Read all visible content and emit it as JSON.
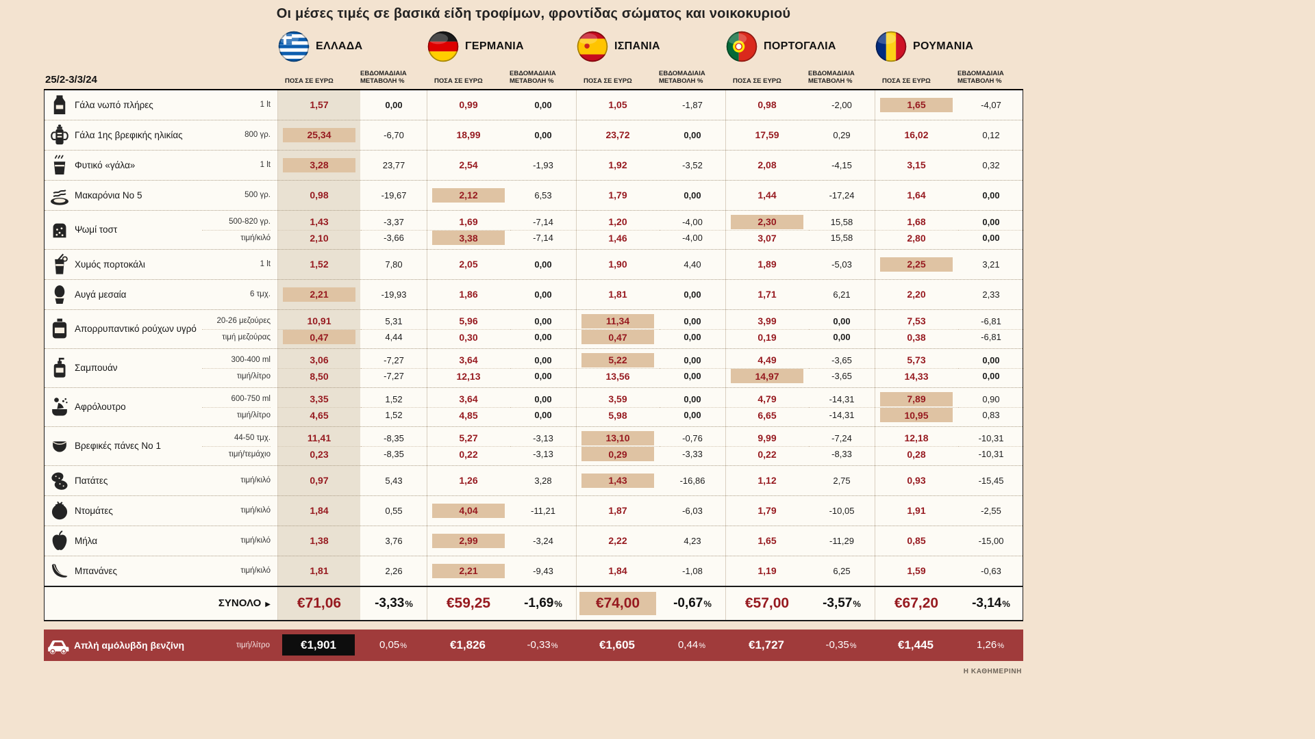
{
  "chart_data": {
    "type": "table",
    "title": "Οι μέσες τιμές σε βασικά είδη τροφίμων, φροντίδας σώματος και νοικοκυριού",
    "period": "25/2-3/3/24",
    "price_header": "ΠΟΣΑ ΣΕ ΕΥΡΩ",
    "change_header": "ΕΒΔΟΜΑΔΙΑΙΑ ΜΕΤΑΒΟΛΗ %",
    "brand": "Η ΚΑΘΗΜΕΡΙΝΗ",
    "colors": {
      "background": "#f3e3d0",
      "table_bg": "#fdfbf5",
      "highlight": "#dfc3a3",
      "greece_column": "#e9e1d2",
      "price_text": "#96191f",
      "fuel_band": "#a03b3b"
    },
    "countries": [
      {
        "name": "ΕΛΛΑΔΑ",
        "flag": "greece"
      },
      {
        "name": "ΓΕΡΜΑΝΙΑ",
        "flag": "germany"
      },
      {
        "name": "ΙΣΠΑΝΙΑ",
        "flag": "spain"
      },
      {
        "name": "ΠΟΡΤΟΓΑΛΙΑ",
        "flag": "portugal"
      },
      {
        "name": "ΡΟΥΜΑΝΙΑ",
        "flag": "romania"
      }
    ],
    "rows": [
      {
        "product": "Γάλα νωπό πλήρες",
        "icon": "milk-carton",
        "lines": [
          {
            "unit": "1 lt",
            "values": [
              {
                "price": "1,57",
                "change": "0,00",
                "hl": false
              },
              {
                "price": "0,99",
                "change": "0,00",
                "hl": false
              },
              {
                "price": "1,05",
                "change": "-1,87",
                "hl": false
              },
              {
                "price": "0,98",
                "change": "-2,00",
                "hl": false
              },
              {
                "price": "1,65",
                "change": "-4,07",
                "hl": true
              }
            ]
          }
        ]
      },
      {
        "product": "Γάλα 1ης βρεφικής ηλικίας",
        "icon": "baby-bottle",
        "lines": [
          {
            "unit": "800 γρ.",
            "values": [
              {
                "price": "25,34",
                "change": "-6,70",
                "hl": true
              },
              {
                "price": "18,99",
                "change": "0,00",
                "hl": false
              },
              {
                "price": "23,72",
                "change": "0,00",
                "hl": false
              },
              {
                "price": "17,59",
                "change": "0,29",
                "hl": false
              },
              {
                "price": "16,02",
                "change": "0,12",
                "hl": false
              }
            ]
          }
        ]
      },
      {
        "product": "Φυτικό «γάλα»",
        "icon": "plant-milk",
        "lines": [
          {
            "unit": "1 lt",
            "values": [
              {
                "price": "3,28",
                "change": "23,77",
                "hl": true
              },
              {
                "price": "2,54",
                "change": "-1,93",
                "hl": false
              },
              {
                "price": "1,92",
                "change": "-3,52",
                "hl": false
              },
              {
                "price": "2,08",
                "change": "-4,15",
                "hl": false
              },
              {
                "price": "3,15",
                "change": "0,32",
                "hl": false
              }
            ]
          }
        ]
      },
      {
        "product": "Μακαρόνια Νο 5",
        "icon": "pasta",
        "lines": [
          {
            "unit": "500 γρ.",
            "values": [
              {
                "price": "0,98",
                "change": "-19,67",
                "hl": false
              },
              {
                "price": "2,12",
                "change": "6,53",
                "hl": true
              },
              {
                "price": "1,79",
                "change": "0,00",
                "hl": false
              },
              {
                "price": "1,44",
                "change": "-17,24",
                "hl": false
              },
              {
                "price": "1,64",
                "change": "0,00",
                "hl": false
              }
            ]
          }
        ]
      },
      {
        "product": "Ψωμί τοστ",
        "icon": "toast",
        "lines": [
          {
            "unit": "500-820 γρ.",
            "values": [
              {
                "price": "1,43",
                "change": "-3,37",
                "hl": false
              },
              {
                "price": "1,69",
                "change": "-7,14",
                "hl": false
              },
              {
                "price": "1,20",
                "change": "-4,00",
                "hl": false
              },
              {
                "price": "2,30",
                "change": "15,58",
                "hl": true
              },
              {
                "price": "1,68",
                "change": "0,00",
                "hl": false
              }
            ]
          },
          {
            "unit": "τιμή/κιλό",
            "values": [
              {
                "price": "2,10",
                "change": "-3,66",
                "hl": false
              },
              {
                "price": "3,38",
                "change": "-7,14",
                "hl": true
              },
              {
                "price": "1,46",
                "change": "-4,00",
                "hl": false
              },
              {
                "price": "3,07",
                "change": "15,58",
                "hl": false
              },
              {
                "price": "2,80",
                "change": "0,00",
                "hl": false
              }
            ]
          }
        ]
      },
      {
        "product": "Χυμός πορτοκάλι",
        "icon": "juice",
        "lines": [
          {
            "unit": "1 lt",
            "values": [
              {
                "price": "1,52",
                "change": "7,80",
                "hl": false
              },
              {
                "price": "2,05",
                "change": "0,00",
                "hl": false
              },
              {
                "price": "1,90",
                "change": "4,40",
                "hl": false
              },
              {
                "price": "1,89",
                "change": "-5,03",
                "hl": false
              },
              {
                "price": "2,25",
                "change": "3,21",
                "hl": true
              }
            ]
          }
        ]
      },
      {
        "product": "Αυγά μεσαία",
        "icon": "egg",
        "lines": [
          {
            "unit": "6 τμχ.",
            "values": [
              {
                "price": "2,21",
                "change": "-19,93",
                "hl": true
              },
              {
                "price": "1,86",
                "change": "0,00",
                "hl": false
              },
              {
                "price": "1,81",
                "change": "0,00",
                "hl": false
              },
              {
                "price": "1,71",
                "change": "6,21",
                "hl": false
              },
              {
                "price": "2,20",
                "change": "2,33",
                "hl": false
              }
            ]
          }
        ]
      },
      {
        "product": "Απορρυπαντικό ρούχων υγρό",
        "icon": "detergent",
        "lines": [
          {
            "unit": "20-26 μεζούρες",
            "values": [
              {
                "price": "10,91",
                "change": "5,31",
                "hl": false
              },
              {
                "price": "5,96",
                "change": "0,00",
                "hl": false
              },
              {
                "price": "11,34",
                "change": "0,00",
                "hl": true
              },
              {
                "price": "3,99",
                "change": "0,00",
                "hl": false
              },
              {
                "price": "7,53",
                "change": "-6,81",
                "hl": false
              }
            ]
          },
          {
            "unit": "τιμή μεζούρας",
            "values": [
              {
                "price": "0,47",
                "change": "4,44",
                "hl": true
              },
              {
                "price": "0,30",
                "change": "0,00",
                "hl": false
              },
              {
                "price": "0,47",
                "change": "0,00",
                "hl": true
              },
              {
                "price": "0,19",
                "change": "0,00",
                "hl": false
              },
              {
                "price": "0,38",
                "change": "-6,81",
                "hl": false
              }
            ]
          }
        ]
      },
      {
        "product": "Σαμπουάν",
        "icon": "shampoo",
        "lines": [
          {
            "unit": "300-400 ml",
            "values": [
              {
                "price": "3,06",
                "change": "-7,27",
                "hl": false
              },
              {
                "price": "3,64",
                "change": "0,00",
                "hl": false
              },
              {
                "price": "5,22",
                "change": "0,00",
                "hl": true
              },
              {
                "price": "4,49",
                "change": "-3,65",
                "hl": false
              },
              {
                "price": "5,73",
                "change": "0,00",
                "hl": false
              }
            ]
          },
          {
            "unit": "τιμή/λίτρο",
            "values": [
              {
                "price": "8,50",
                "change": "-7,27",
                "hl": false
              },
              {
                "price": "12,13",
                "change": "0,00",
                "hl": false
              },
              {
                "price": "13,56",
                "change": "0,00",
                "hl": false
              },
              {
                "price": "14,97",
                "change": "-3,65",
                "hl": true
              },
              {
                "price": "14,33",
                "change": "0,00",
                "hl": false
              }
            ]
          }
        ]
      },
      {
        "product": "Αφρόλουτρο",
        "icon": "body-wash",
        "lines": [
          {
            "unit": "600-750 ml",
            "values": [
              {
                "price": "3,35",
                "change": "1,52",
                "hl": false
              },
              {
                "price": "3,64",
                "change": "0,00",
                "hl": false
              },
              {
                "price": "3,59",
                "change": "0,00",
                "hl": false
              },
              {
                "price": "4,79",
                "change": "-14,31",
                "hl": false
              },
              {
                "price": "7,89",
                "change": "0,90",
                "hl": true
              }
            ]
          },
          {
            "unit": "τιμή/λίτρο",
            "values": [
              {
                "price": "4,65",
                "change": "1,52",
                "hl": false
              },
              {
                "price": "4,85",
                "change": "0,00",
                "hl": false
              },
              {
                "price": "5,98",
                "change": "0,00",
                "hl": false
              },
              {
                "price": "6,65",
                "change": "-14,31",
                "hl": false
              },
              {
                "price": "10,95",
                "change": "0,83",
                "hl": true
              }
            ]
          }
        ]
      },
      {
        "product": "Βρεφικές πάνες Νο 1",
        "icon": "diaper",
        "lines": [
          {
            "unit": "44-50 τμχ.",
            "values": [
              {
                "price": "11,41",
                "change": "-8,35",
                "hl": false
              },
              {
                "price": "5,27",
                "change": "-3,13",
                "hl": false
              },
              {
                "price": "13,10",
                "change": "-0,76",
                "hl": true
              },
              {
                "price": "9,99",
                "change": "-7,24",
                "hl": false
              },
              {
                "price": "12,18",
                "change": "-10,31",
                "hl": false
              }
            ]
          },
          {
            "unit": "τιμή/τεμάχιο",
            "values": [
              {
                "price": "0,23",
                "change": "-8,35",
                "hl": false
              },
              {
                "price": "0,22",
                "change": "-3,13",
                "hl": false
              },
              {
                "price": "0,29",
                "change": "-3,33",
                "hl": true
              },
              {
                "price": "0,22",
                "change": "-8,33",
                "hl": false
              },
              {
                "price": "0,28",
                "change": "-10,31",
                "hl": false
              }
            ]
          }
        ]
      },
      {
        "product": "Πατάτες",
        "icon": "potatoes",
        "lines": [
          {
            "unit": "τιμή/κιλό",
            "values": [
              {
                "price": "0,97",
                "change": "5,43",
                "hl": false
              },
              {
                "price": "1,26",
                "change": "3,28",
                "hl": false
              },
              {
                "price": "1,43",
                "change": "-16,86",
                "hl": true
              },
              {
                "price": "1,12",
                "change": "2,75",
                "hl": false
              },
              {
                "price": "0,93",
                "change": "-15,45",
                "hl": false
              }
            ]
          }
        ]
      },
      {
        "product": "Ντομάτες",
        "icon": "tomato",
        "lines": [
          {
            "unit": "τιμή/κιλό",
            "values": [
              {
                "price": "1,84",
                "change": "0,55",
                "hl": false
              },
              {
                "price": "4,04",
                "change": "-11,21",
                "hl": true
              },
              {
                "price": "1,87",
                "change": "-6,03",
                "hl": false
              },
              {
                "price": "1,79",
                "change": "-10,05",
                "hl": false
              },
              {
                "price": "1,91",
                "change": "-2,55",
                "hl": false
              }
            ]
          }
        ]
      },
      {
        "product": "Μήλα",
        "icon": "apple",
        "lines": [
          {
            "unit": "τιμή/κιλό",
            "values": [
              {
                "price": "1,38",
                "change": "3,76",
                "hl": false
              },
              {
                "price": "2,99",
                "change": "-3,24",
                "hl": true
              },
              {
                "price": "2,22",
                "change": "4,23",
                "hl": false
              },
              {
                "price": "1,65",
                "change": "-11,29",
                "hl": false
              },
              {
                "price": "0,85",
                "change": "-15,00",
                "hl": false
              }
            ]
          }
        ]
      },
      {
        "product": "Μπανάνες",
        "icon": "bananas",
        "lines": [
          {
            "unit": "τιμή/κιλό",
            "values": [
              {
                "price": "1,81",
                "change": "2,26",
                "hl": false
              },
              {
                "price": "2,21",
                "change": "-9,43",
                "hl": true
              },
              {
                "price": "1,84",
                "change": "-1,08",
                "hl": false
              },
              {
                "price": "1,19",
                "change": "6,25",
                "hl": false
              },
              {
                "price": "1,59",
                "change": "-0,63",
                "hl": false
              }
            ]
          }
        ]
      }
    ],
    "total": {
      "label": "ΣΥΝΟΛΟ",
      "arrow": "▶",
      "values": [
        {
          "price": "€71,06",
          "change": "-3,33%",
          "hl": false
        },
        {
          "price": "€59,25",
          "change": "-1,69%",
          "hl": false
        },
        {
          "price": "€74,00",
          "change": "-0,67%",
          "hl": true
        },
        {
          "price": "€57,00",
          "change": "-3,57%",
          "hl": false
        },
        {
          "price": "€67,20",
          "change": "-3,14%",
          "hl": false
        }
      ]
    },
    "fuel": {
      "product": "Απλή αμόλυβδη βενζίνη",
      "unit": "τιμή/λίτρο",
      "icon": "car",
      "values": [
        {
          "price": "€1,901",
          "change": "0,05%",
          "boxed": true
        },
        {
          "price": "€1,826",
          "change": "-0,33%",
          "boxed": false
        },
        {
          "price": "€1,605",
          "change": "0,44%",
          "boxed": false
        },
        {
          "price": "€1,727",
          "change": "-0,35%",
          "boxed": false
        },
        {
          "price": "€1,445",
          "change": "1,26%",
          "boxed": false
        }
      ]
    }
  }
}
